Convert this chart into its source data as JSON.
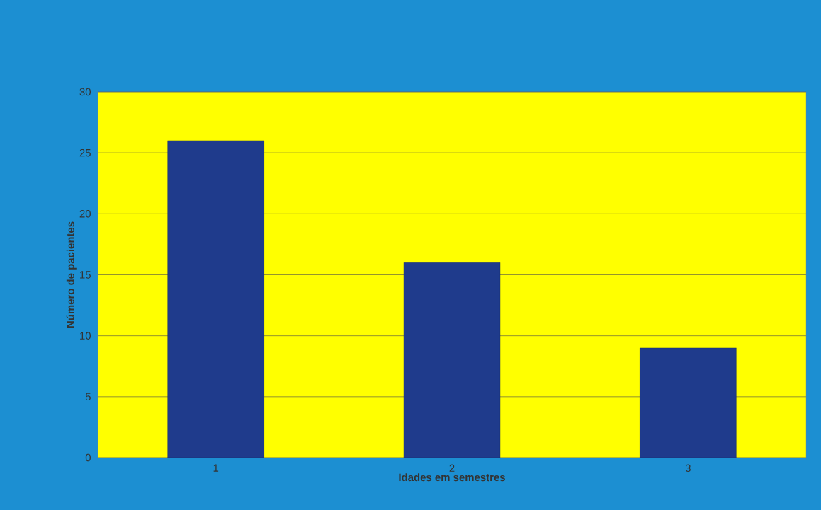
{
  "chart_data": {
    "type": "bar",
    "xlabel": "Idades em semestres",
    "ylabel": "Número de pacientes",
    "categories": [
      "1",
      "2",
      "3"
    ],
    "values": [
      26,
      16,
      9
    ],
    "color": "#1f3b8c",
    "ylim": [
      0,
      30
    ],
    "yticks": [
      0,
      5,
      10,
      15,
      20,
      25,
      30
    ],
    "grid": "y"
  }
}
